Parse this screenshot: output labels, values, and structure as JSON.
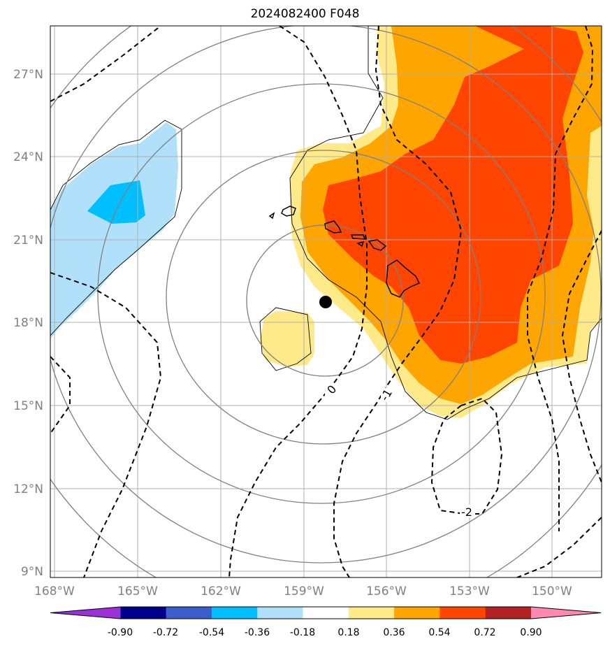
{
  "title": "2024082400 F048",
  "map": {
    "lon_ticks": [
      "168°W",
      "165°W",
      "162°W",
      "159°W",
      "156°W",
      "153°W",
      "150°W"
    ],
    "lat_ticks": [
      "27°N",
      "24°N",
      "21°N",
      "18°N",
      "15°N",
      "12°N",
      "9°N"
    ],
    "storm_marker": {
      "lon": "158.2°W",
      "lat": "18.7°N"
    },
    "contour_labels": [
      "0",
      "-1",
      "-2"
    ]
  },
  "colorbar": {
    "labels": [
      "-0.90",
      "-0.72",
      "-0.54",
      "-0.36",
      "-0.18",
      "0.18",
      "0.36",
      "0.54",
      "0.72",
      "0.90"
    ],
    "colors": [
      "#9b30d9",
      "#00008b",
      "#3a5fcd",
      "#00bfff",
      "#b0e0fa",
      "#ffffff",
      "#ffea8a",
      "#ffa500",
      "#ff4500",
      "#b22222",
      "#ff88b0"
    ]
  }
}
